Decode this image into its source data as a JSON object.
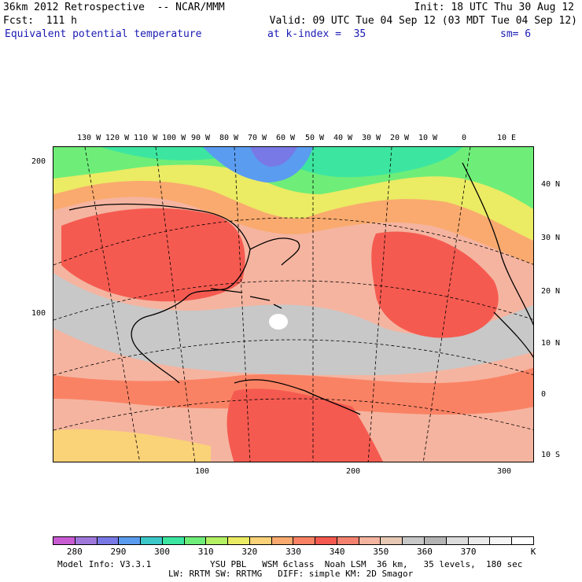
{
  "header": {
    "line1_left": "36km 2012 Retrospective  -- NCAR/MMM",
    "line1_right": "Init: 18 UTC Thu 30 Aug 12",
    "line2_left": "Fcst:  111 h",
    "line2_right": "Valid: 09 UTC Tue 04 Sep 12 (03 MDT Tue 04 Sep 12)",
    "line3_field": "Equivalent potential temperature",
    "line3_level": "at k-index =  35",
    "line3_smooth": "sm= 6"
  },
  "map": {
    "top_lon_labels": [
      "130 W",
      "120 W",
      "110 W",
      "100 W",
      "90 W",
      "80 W",
      "70 W",
      "60 W",
      "50 W",
      "40 W",
      "30 W",
      "20 W",
      "10 W",
      "0",
      "10 E"
    ],
    "right_lat_labels": [
      "40 N",
      "30 N",
      "20 N",
      "10 N",
      "0",
      "10 S"
    ],
    "left_grid_labels": [
      "200",
      "100"
    ],
    "bottom_grid_labels": [
      "100",
      "200",
      "300"
    ]
  },
  "colorbar": {
    "colors": [
      "#c85ad2",
      "#a078dc",
      "#7878e6",
      "#5a9cf0",
      "#3cc8c8",
      "#3ce6a0",
      "#6eee78",
      "#b4f064",
      "#ebeb64",
      "#fad278",
      "#faaa6e",
      "#fa8264",
      "#f55a50",
      "#f5826e",
      "#f5b4a0",
      "#e6c8b4",
      "#c8c8c8",
      "#b4b4b4",
      "#dcdcdc",
      "#ebebeb",
      "#f5f5f5",
      "#ffffff"
    ],
    "labels": [
      "280",
      "290",
      "300",
      "310",
      "320",
      "330",
      "340",
      "350",
      "360",
      "370"
    ],
    "unit": "K"
  },
  "footer": {
    "model_info": "Model Info: V3.3.1",
    "physics_line1": "YSU PBL   WSM 6class  Noah LSM  36 km,   35 levels,  180 sec",
    "physics_line2": "LW: RRTM SW: RRTMG   DIFF: simple KM: 2D Smagor"
  }
}
